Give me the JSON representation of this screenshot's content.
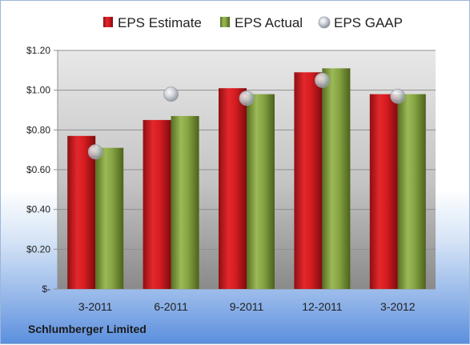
{
  "company": "Schlumberger Limited",
  "colors": {
    "estimate": "#c8161d",
    "actual": "#7d9c3c",
    "gaap": "#b8bec6"
  },
  "chart_data": {
    "type": "bar",
    "categories": [
      "3-2011",
      "6-2011",
      "9-2011",
      "12-2011",
      "3-2012"
    ],
    "series": [
      {
        "name": "EPS Estimate",
        "values": [
          0.77,
          0.85,
          1.01,
          1.09,
          0.98
        ]
      },
      {
        "name": "EPS Actual",
        "values": [
          0.71,
          0.87,
          0.98,
          1.11,
          0.98
        ]
      },
      {
        "name": "EPS GAAP",
        "marker": "circle",
        "values": [
          0.69,
          0.98,
          0.96,
          1.05,
          0.97
        ]
      }
    ],
    "ylim": [
      0,
      1.2
    ],
    "yticks": [
      0,
      0.2,
      0.4,
      0.6,
      0.8,
      1.0,
      1.2
    ],
    "ytick_labels": [
      "$-",
      "$0.20",
      "$0.40",
      "$0.60",
      "$0.80",
      "$1.00",
      "$1.20"
    ],
    "legend_position": "top",
    "grid": true
  }
}
